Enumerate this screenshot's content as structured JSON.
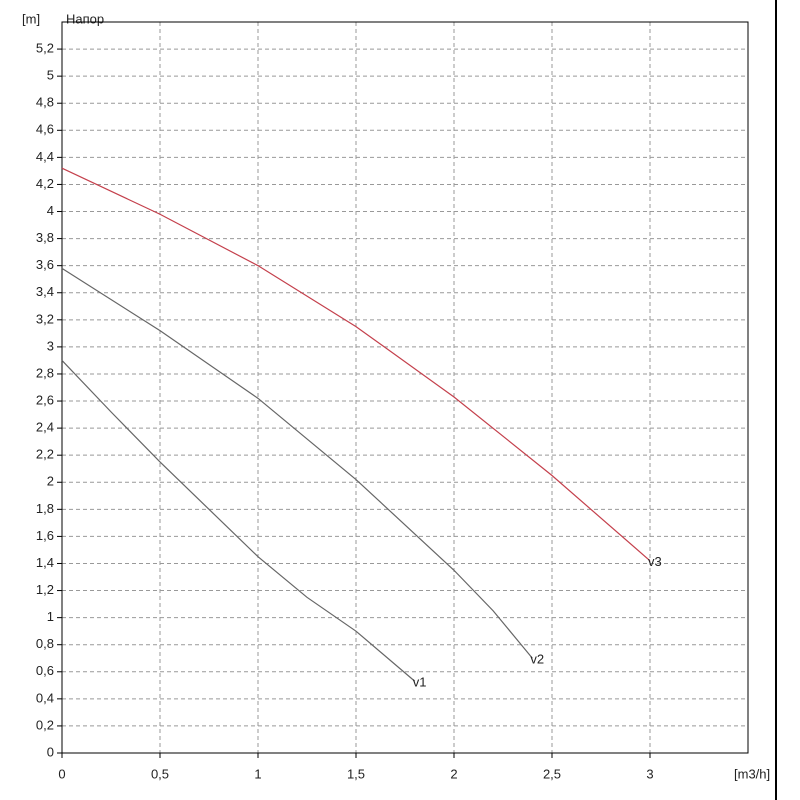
{
  "chart_data": {
    "type": "line",
    "title": "Напор",
    "y_label": "[m]",
    "x_label": "[m3/h]",
    "xlim": [
      0,
      3.5
    ],
    "ylim": [
      0,
      5.4
    ],
    "grid": true,
    "xticks": [
      0,
      {
        "value": 0.5,
        "label": "0,5"
      },
      1,
      {
        "value": 1.5,
        "label": "1,5"
      },
      2,
      {
        "value": 2.5,
        "label": "2,5"
      },
      3
    ],
    "yticks": [
      0,
      {
        "value": 0.2,
        "label": "0,2"
      },
      {
        "value": 0.4,
        "label": "0,4"
      },
      {
        "value": 0.6,
        "label": "0,6"
      },
      {
        "value": 0.8,
        "label": "0,8"
      },
      1,
      {
        "value": 1.2,
        "label": "1,2"
      },
      {
        "value": 1.4,
        "label": "1,4"
      },
      {
        "value": 1.6,
        "label": "1,6"
      },
      {
        "value": 1.8,
        "label": "1,8"
      },
      2,
      {
        "value": 2.2,
        "label": "2,2"
      },
      {
        "value": 2.4,
        "label": "2,4"
      },
      {
        "value": 2.6,
        "label": "2,6"
      },
      {
        "value": 2.8,
        "label": "2,8"
      },
      3,
      {
        "value": 3.2,
        "label": "3,2"
      },
      {
        "value": 3.4,
        "label": "3,4"
      },
      {
        "value": 3.6,
        "label": "3,6"
      },
      {
        "value": 3.8,
        "label": "3,8"
      },
      4,
      {
        "value": 4.2,
        "label": "4,2"
      },
      {
        "value": 4.4,
        "label": "4,4"
      },
      {
        "value": 4.6,
        "label": "4,6"
      },
      {
        "value": 4.8,
        "label": "4,8"
      },
      5,
      {
        "value": 5.2,
        "label": "5,2"
      }
    ],
    "series": [
      {
        "name": "v1",
        "color": "#666666",
        "x": [
          0,
          0.25,
          0.5,
          0.75,
          1,
          1.25,
          1.5,
          1.8
        ],
        "values": [
          2.9,
          2.52,
          2.15,
          1.8,
          1.45,
          1.15,
          0.9,
          0.53
        ]
      },
      {
        "name": "v2",
        "color": "#666666",
        "x": [
          0,
          0.5,
          1,
          1.5,
          2,
          2.2,
          2.4
        ],
        "values": [
          3.58,
          3.12,
          2.62,
          2.02,
          1.35,
          1.05,
          0.7
        ]
      },
      {
        "name": "v3",
        "color": "#c4404c",
        "x": [
          0,
          0.5,
          1,
          1.5,
          2,
          2.5,
          3
        ],
        "values": [
          4.32,
          3.98,
          3.6,
          3.15,
          2.63,
          2.05,
          1.42
        ]
      }
    ]
  }
}
